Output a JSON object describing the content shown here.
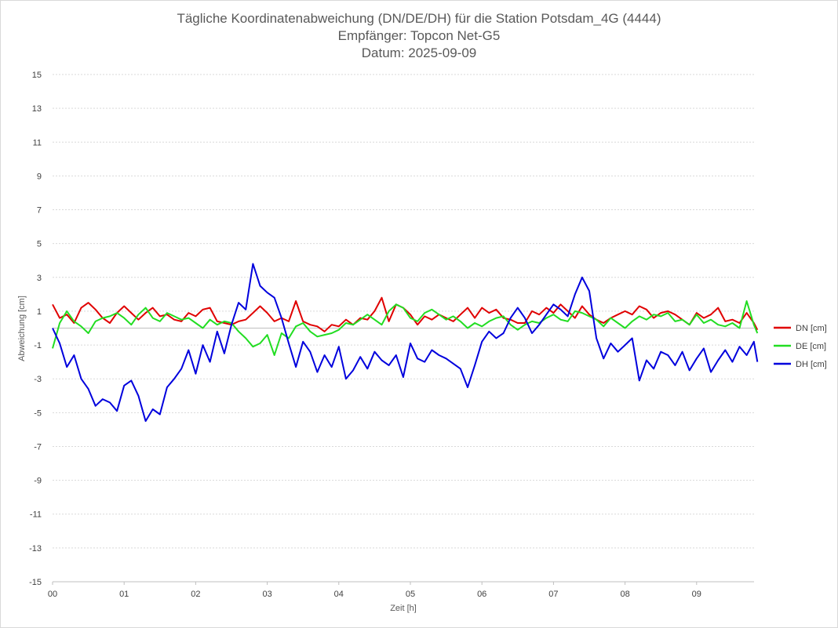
{
  "chart_data": {
    "type": "line",
    "title": [
      "Tägliche Koordinatenabweichung (DN/DE/DH) für die Station Potsdam_4G (4444)",
      "Empfänger: Topcon Net-G5",
      "Datum: 2025-09-09"
    ],
    "xlabel": "Zeit [h]",
    "ylabel": "Abweichung [cm]",
    "ylim": [
      -15,
      15
    ],
    "xlim": [
      0,
      9.85
    ],
    "ytick_labels": [
      "15",
      "13",
      "11",
      "9",
      "7",
      "5",
      "3",
      "1",
      "-1",
      "-3",
      "-5",
      "-7",
      "-9",
      "-11",
      "-13",
      "-15"
    ],
    "xtick_labels": [
      "00",
      "01",
      "02",
      "03",
      "04",
      "05",
      "06",
      "07",
      "08",
      "09"
    ],
    "grid": true,
    "legend_position": "right",
    "series": [
      {
        "name": "DN [cm]",
        "color": "#e00000",
        "x": [
          0,
          0.1,
          0.2,
          0.3,
          0.4,
          0.5,
          0.6,
          0.7,
          0.8,
          0.9,
          1,
          1.1,
          1.2,
          1.3,
          1.4,
          1.5,
          1.6,
          1.7,
          1.8,
          1.9,
          2,
          2.1,
          2.2,
          2.3,
          2.4,
          2.5,
          2.6,
          2.7,
          2.8,
          2.9,
          3,
          3.1,
          3.2,
          3.3,
          3.4,
          3.5,
          3.6,
          3.7,
          3.8,
          3.9,
          4,
          4.1,
          4.2,
          4.3,
          4.4,
          4.5,
          4.6,
          4.7,
          4.8,
          4.9,
          5,
          5.1,
          5.2,
          5.3,
          5.4,
          5.5,
          5.6,
          5.7,
          5.8,
          5.9,
          6,
          6.1,
          6.2,
          6.3,
          6.4,
          6.5,
          6.6,
          6.7,
          6.8,
          6.9,
          7,
          7.1,
          7.2,
          7.3,
          7.4,
          7.5,
          7.6,
          7.7,
          7.8,
          7.9,
          8,
          8.1,
          8.2,
          8.3,
          8.4,
          8.5,
          8.6,
          8.7,
          8.8,
          8.9,
          9,
          9.1,
          9.2,
          9.3,
          9.4,
          9.5,
          9.6,
          9.7,
          9.8,
          9.85
        ],
        "values": [
          1.4,
          0.6,
          0.8,
          0.3,
          1.2,
          1.5,
          1.1,
          0.6,
          0.3,
          0.9,
          1.3,
          0.9,
          0.5,
          0.9,
          1.2,
          0.7,
          0.8,
          0.5,
          0.4,
          0.9,
          0.7,
          1.1,
          1.2,
          0.4,
          0.3,
          0.2,
          0.4,
          0.5,
          0.9,
          1.3,
          0.9,
          0.4,
          0.6,
          0.4,
          1.6,
          0.4,
          0.2,
          0.1,
          -0.2,
          0.2,
          0.1,
          0.5,
          0.2,
          0.6,
          0.5,
          1.0,
          1.8,
          0.4,
          1.4,
          1.2,
          0.8,
          0.2,
          0.7,
          0.5,
          0.8,
          0.6,
          0.4,
          0.8,
          1.2,
          0.6,
          1.2,
          0.9,
          1.1,
          0.6,
          0.5,
          0.3,
          0.3,
          1.0,
          0.8,
          1.2,
          0.9,
          1.4,
          1.0,
          0.6,
          1.3,
          0.8,
          0.5,
          0.3,
          0.6,
          0.8,
          1.0,
          0.8,
          1.3,
          1.1,
          0.6,
          0.9,
          1.0,
          0.8,
          0.5,
          0.2,
          0.9,
          0.6,
          0.8,
          1.2,
          0.4,
          0.5,
          0.3,
          0.9,
          0.3,
          -0.1
        ]
      },
      {
        "name": "DE [cm]",
        "color": "#22dd22",
        "x": [
          0,
          0.1,
          0.2,
          0.3,
          0.4,
          0.5,
          0.6,
          0.7,
          0.8,
          0.9,
          1,
          1.1,
          1.2,
          1.3,
          1.4,
          1.5,
          1.6,
          1.7,
          1.8,
          1.9,
          2,
          2.1,
          2.2,
          2.3,
          2.4,
          2.5,
          2.6,
          2.7,
          2.8,
          2.9,
          3,
          3.1,
          3.2,
          3.3,
          3.4,
          3.5,
          3.6,
          3.7,
          3.8,
          3.9,
          4,
          4.1,
          4.2,
          4.3,
          4.4,
          4.5,
          4.6,
          4.7,
          4.8,
          4.9,
          5,
          5.1,
          5.2,
          5.3,
          5.4,
          5.5,
          5.6,
          5.7,
          5.8,
          5.9,
          6,
          6.1,
          6.2,
          6.3,
          6.4,
          6.5,
          6.6,
          6.7,
          6.8,
          6.9,
          7,
          7.1,
          7.2,
          7.3,
          7.4,
          7.5,
          7.6,
          7.7,
          7.8,
          7.9,
          8,
          8.1,
          8.2,
          8.3,
          8.4,
          8.5,
          8.6,
          8.7,
          8.8,
          8.9,
          9,
          9.1,
          9.2,
          9.3,
          9.4,
          9.5,
          9.6,
          9.7,
          9.8,
          9.85
        ],
        "values": [
          -1.2,
          0.3,
          1.0,
          0.4,
          0.1,
          -0.3,
          0.4,
          0.6,
          0.7,
          0.9,
          0.6,
          0.2,
          0.8,
          1.2,
          0.6,
          0.4,
          0.9,
          0.7,
          0.5,
          0.6,
          0.3,
          0.0,
          0.5,
          0.2,
          0.4,
          0.3,
          -0.2,
          -0.6,
          -1.1,
          -0.9,
          -0.4,
          -1.6,
          -0.3,
          -0.6,
          0.1,
          0.3,
          -0.2,
          -0.5,
          -0.4,
          -0.3,
          -0.1,
          0.3,
          0.2,
          0.5,
          0.8,
          0.5,
          0.2,
          1.0,
          1.4,
          1.2,
          0.6,
          0.4,
          0.9,
          1.1,
          0.8,
          0.5,
          0.7,
          0.4,
          0.0,
          0.3,
          0.1,
          0.4,
          0.6,
          0.7,
          0.2,
          -0.1,
          0.2,
          0.4,
          0.3,
          0.6,
          0.8,
          0.5,
          0.4,
          1.0,
          0.9,
          0.7,
          0.5,
          0.1,
          0.6,
          0.3,
          0.0,
          0.4,
          0.7,
          0.5,
          0.8,
          0.7,
          0.9,
          0.4,
          0.5,
          0.2,
          0.8,
          0.3,
          0.5,
          0.2,
          0.1,
          0.3,
          0.0,
          1.6,
          0.2,
          -0.3
        ]
      },
      {
        "name": "DH [cm]",
        "color": "#0000dd",
        "x": [
          0,
          0.1,
          0.2,
          0.3,
          0.4,
          0.5,
          0.6,
          0.7,
          0.8,
          0.9,
          1,
          1.1,
          1.2,
          1.3,
          1.4,
          1.5,
          1.6,
          1.7,
          1.8,
          1.9,
          2,
          2.1,
          2.2,
          2.3,
          2.4,
          2.5,
          2.6,
          2.7,
          2.8,
          2.9,
          3,
          3.1,
          3.2,
          3.3,
          3.4,
          3.5,
          3.6,
          3.7,
          3.8,
          3.9,
          4,
          4.1,
          4.2,
          4.3,
          4.4,
          4.5,
          4.6,
          4.7,
          4.8,
          4.9,
          5,
          5.1,
          5.2,
          5.3,
          5.4,
          5.5,
          5.6,
          5.7,
          5.8,
          5.9,
          6,
          6.1,
          6.2,
          6.3,
          6.4,
          6.5,
          6.6,
          6.7,
          6.8,
          6.9,
          7,
          7.1,
          7.2,
          7.3,
          7.4,
          7.5,
          7.6,
          7.7,
          7.8,
          7.9,
          8,
          8.1,
          8.2,
          8.3,
          8.4,
          8.5,
          8.6,
          8.7,
          8.8,
          8.9,
          9,
          9.1,
          9.2,
          9.3,
          9.4,
          9.5,
          9.6,
          9.7,
          9.8,
          9.85
        ],
        "values": [
          0.0,
          -0.9,
          -2.3,
          -1.6,
          -3.0,
          -3.6,
          -4.6,
          -4.2,
          -4.4,
          -4.9,
          -3.4,
          -3.1,
          -4.0,
          -5.5,
          -4.8,
          -5.1,
          -3.5,
          -3.0,
          -2.4,
          -1.3,
          -2.7,
          -1.0,
          -2.0,
          -0.2,
          -1.5,
          0.2,
          1.5,
          1.1,
          3.8,
          2.5,
          2.1,
          1.8,
          0.6,
          -0.9,
          -2.3,
          -0.8,
          -1.4,
          -2.6,
          -1.6,
          -2.3,
          -1.1,
          -3.0,
          -2.5,
          -1.7,
          -2.4,
          -1.4,
          -1.9,
          -2.2,
          -1.6,
          -2.9,
          -0.9,
          -1.8,
          -2.0,
          -1.3,
          -1.6,
          -1.8,
          -2.1,
          -2.4,
          -3.5,
          -2.2,
          -0.8,
          -0.2,
          -0.6,
          -0.3,
          0.6,
          1.2,
          0.6,
          -0.3,
          0.2,
          0.8,
          1.4,
          1.1,
          0.7,
          2.0,
          3.0,
          2.2,
          -0.6,
          -1.8,
          -0.9,
          -1.4,
          -1.0,
          -0.6,
          -3.1,
          -1.9,
          -2.4,
          -1.4,
          -1.6,
          -2.2,
          -1.4,
          -2.5,
          -1.8,
          -1.2,
          -2.6,
          -1.9,
          -1.3,
          -2.0,
          -1.1,
          -1.6,
          -0.8,
          -2.0
        ]
      }
    ]
  }
}
